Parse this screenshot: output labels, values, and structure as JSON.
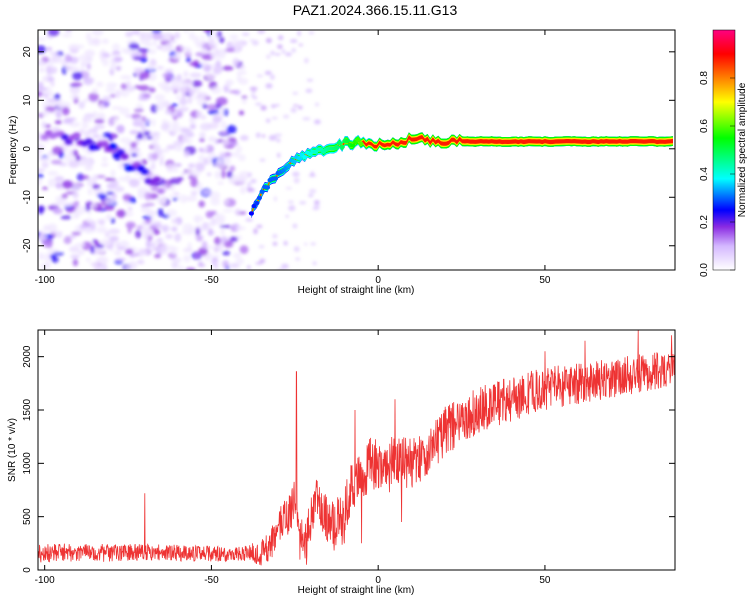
{
  "title": "PAZ1.2024.366.15.11.G13",
  "chart_data": [
    {
      "type": "heatmap",
      "xlabel": "Height of straight line (km)",
      "ylabel": "Frequency (Hz)",
      "xlim": [
        -102,
        89
      ],
      "ylim": [
        -25,
        24.5
      ],
      "xticks": [
        -100,
        -50,
        0,
        50
      ],
      "yticks": [
        -20,
        -10,
        0,
        10,
        20
      ],
      "colorbar": {
        "label": "Normalized spectral amplitude",
        "range": [
          0,
          1
        ],
        "ticks": [
          "0.0",
          "0.2",
          "0.4",
          "0.6",
          "0.8"
        ],
        "colormap": "rainbow"
      },
      "ridge": {
        "height_km": [
          -38,
          -35,
          -30,
          -25,
          -20,
          -15,
          -10,
          -5,
          0,
          5,
          10,
          15,
          20,
          30,
          40,
          50,
          60,
          70,
          80,
          89
        ],
        "frequency_hz": [
          -13,
          -9,
          -5,
          -2,
          -1,
          0,
          1,
          1.5,
          0.8,
          1.2,
          2,
          1.8,
          1.5,
          1.5,
          1.5,
          1.5,
          1.5,
          1.5,
          1.5,
          1.5
        ],
        "amplitude": [
          0.25,
          0.3,
          0.3,
          0.35,
          0.4,
          0.45,
          0.5,
          0.6,
          0.75,
          0.8,
          0.85,
          0.9,
          0.9,
          0.95,
          0.95,
          0.95,
          0.95,
          0.95,
          0.95,
          0.95
        ]
      },
      "secondary_track": {
        "height_km": [
          -100,
          -90,
          -80,
          -75,
          -70,
          -65
        ],
        "frequency_hz": [
          3,
          2,
          0,
          -3,
          -5,
          -8
        ],
        "amplitude": [
          0.1,
          0.12,
          0.15,
          0.15,
          0.12,
          0.1
        ]
      }
    },
    {
      "type": "line",
      "xlabel": "Height of straight line (km)",
      "ylabel": "SNR (10 * v/v)",
      "xlim": [
        -102,
        89
      ],
      "ylim": [
        0,
        2250
      ],
      "xticks": [
        -100,
        -50,
        0,
        50
      ],
      "yticks": [
        0,
        500,
        1000,
        1500,
        2000
      ],
      "color": "#ee3333",
      "trend": {
        "x": [
          -102,
          -90,
          -80,
          -70,
          -60,
          -50,
          -40,
          -35,
          -32,
          -30,
          -28,
          -26,
          -25,
          -24,
          -22,
          -20,
          -18,
          -15,
          -12,
          -10,
          -8,
          -5,
          -2,
          0,
          3,
          5,
          8,
          10,
          15,
          20,
          25,
          30,
          40,
          50,
          60,
          70,
          80,
          89
        ],
        "y": [
          160,
          160,
          160,
          170,
          160,
          150,
          155,
          160,
          250,
          400,
          500,
          550,
          700,
          300,
          250,
          500,
          700,
          400,
          450,
          500,
          800,
          900,
          1000,
          1000,
          950,
          1050,
          1000,
          1000,
          1100,
          1300,
          1400,
          1500,
          1600,
          1700,
          1750,
          1800,
          1850,
          1900
        ]
      },
      "noise_amplitude": {
        "x": [
          -102,
          -40,
          -30,
          -10,
          20,
          89
        ],
        "y": [
          90,
          70,
          180,
          260,
          230,
          170
        ]
      },
      "spikes": [
        {
          "x": -70,
          "y": 720
        },
        {
          "x": -24.5,
          "y": 1860
        },
        {
          "x": -21.5,
          "y": 50
        },
        {
          "x": -7,
          "y": 1500
        },
        {
          "x": -5,
          "y": 250
        },
        {
          "x": 5,
          "y": 1600
        },
        {
          "x": 7,
          "y": 450
        },
        {
          "x": 50,
          "y": 2050
        },
        {
          "x": 62,
          "y": 2150
        },
        {
          "x": 78,
          "y": 2250
        },
        {
          "x": 88,
          "y": 2200
        }
      ]
    }
  ]
}
